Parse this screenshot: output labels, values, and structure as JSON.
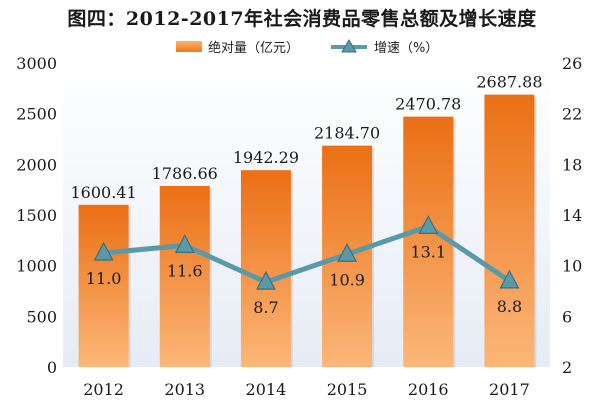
{
  "title": "图四：2012-2017年社会消费品零售总额及增长速度",
  "legend": {
    "bar_label": "绝对量（亿元）",
    "line_label": "增速（%）"
  },
  "colors": {
    "bar_top": "#eb6f14",
    "bar_bottom": "#fbb779",
    "line": "#5a9aa8",
    "marker_fill": "#5a9aa8",
    "marker_stroke": "#3b6f7b",
    "plot_bg_top": "#ffffff",
    "plot_bg_bottom": "#e6ecf5"
  },
  "chart_data": {
    "type": "bar",
    "categories": [
      "2012",
      "2013",
      "2014",
      "2015",
      "2016",
      "2017"
    ],
    "series": [
      {
        "name": "绝对量（亿元）",
        "type": "bar",
        "axis": "left",
        "values": [
          1600.41,
          1786.66,
          1942.29,
          2184.7,
          2470.78,
          2687.88
        ],
        "labels": [
          "1600.41",
          "1786.66",
          "1942.29",
          "2184.70",
          "2470.78",
          "2687.88"
        ]
      },
      {
        "name": "增速（%）",
        "type": "line",
        "axis": "right",
        "values": [
          11.0,
          11.6,
          8.7,
          10.9,
          13.1,
          8.8
        ],
        "labels": [
          "11.0",
          "11.6",
          "8.7",
          "10.9",
          "13.1",
          "8.8"
        ]
      }
    ],
    "y_left": {
      "min": 0,
      "max": 3000,
      "ticks": [
        "0",
        "500",
        "1000",
        "1500",
        "2000",
        "2500",
        "3000"
      ]
    },
    "y_right": {
      "min": 2,
      "max": 26,
      "ticks": [
        "2",
        "6",
        "10",
        "14",
        "18",
        "22",
        "26"
      ]
    },
    "grid": false,
    "legend_position": "top"
  }
}
